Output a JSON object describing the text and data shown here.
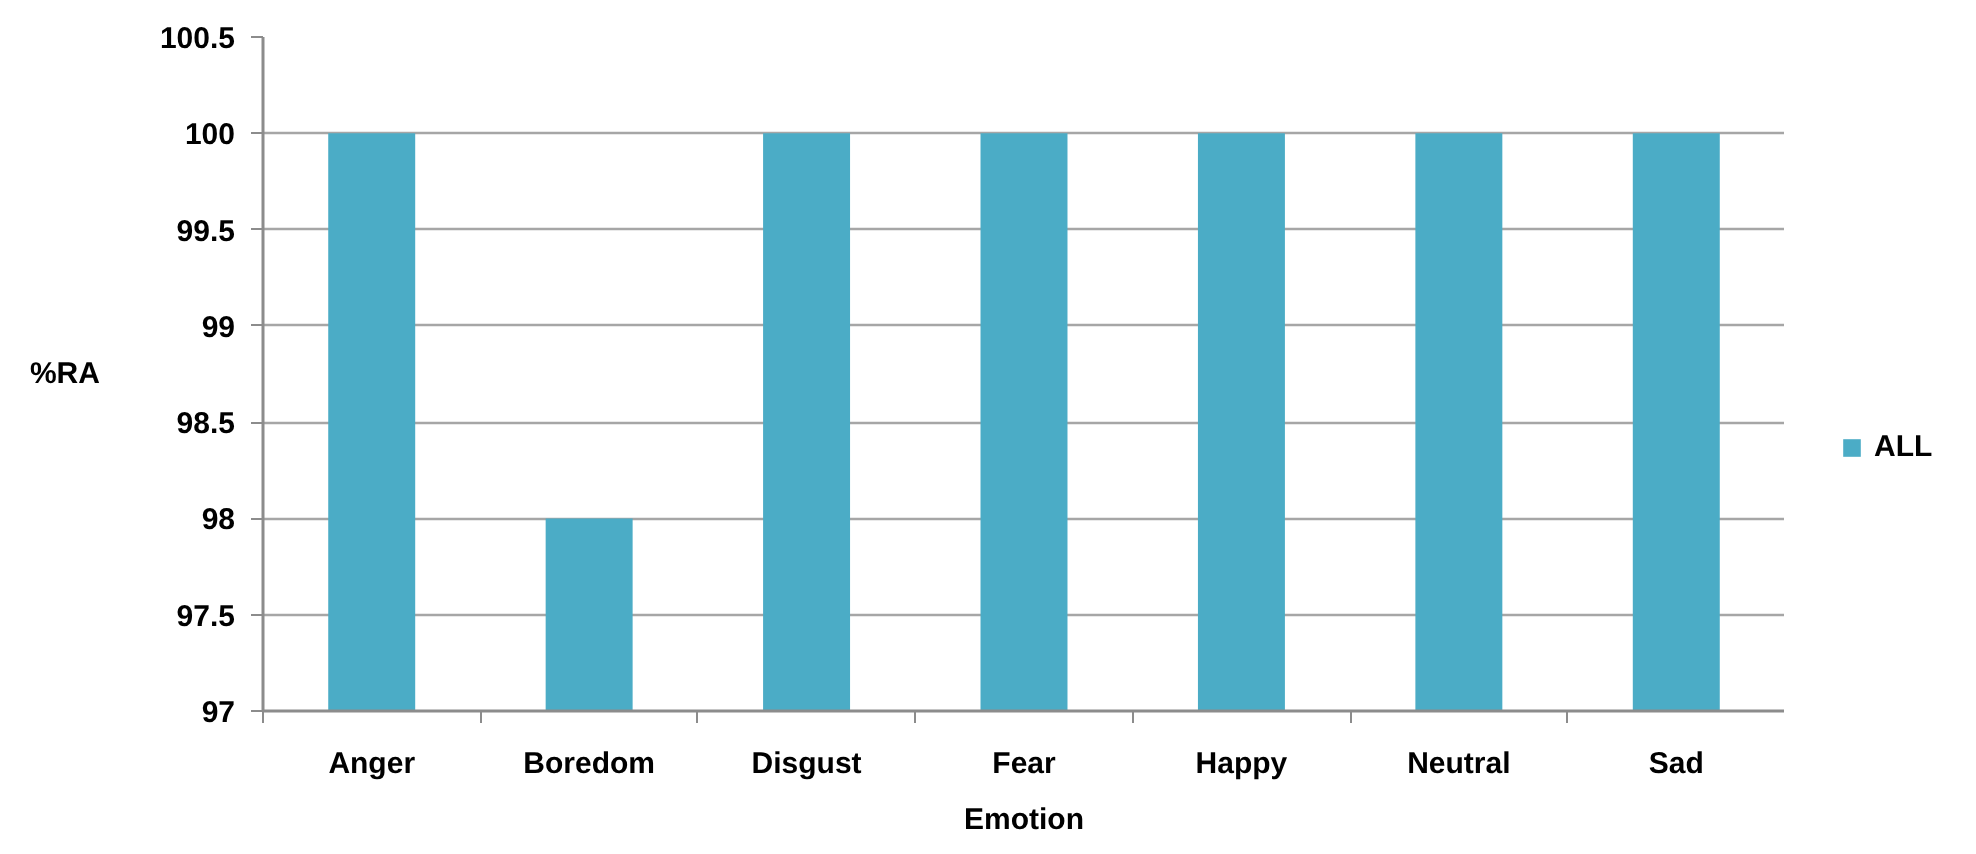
{
  "chart_data": {
    "type": "bar",
    "xlabel": "Emotion",
    "ylabel": "%RA",
    "categories": [
      "Anger",
      "Boredom",
      "Disgust",
      "Fear",
      "Happy",
      "Neutral",
      "Sad"
    ],
    "series": [
      {
        "name": "ALL",
        "color": "#4bacc6",
        "values": [
          100,
          98,
          100,
          100,
          100,
          100,
          100
        ]
      }
    ],
    "ylim": [
      97,
      100.5
    ],
    "yticks": [
      97,
      97.5,
      98,
      98.5,
      99,
      99.5,
      100,
      100.5
    ],
    "grid": "y",
    "legend": "right"
  }
}
